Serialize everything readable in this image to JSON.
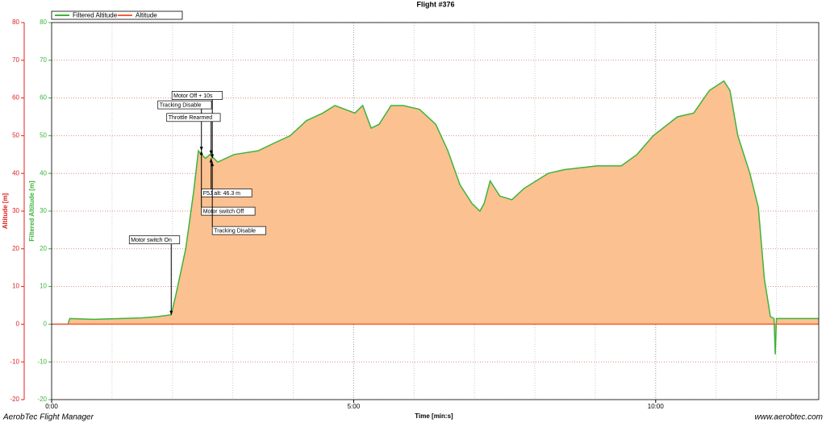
{
  "chart_data": {
    "type": "area",
    "title": "Flight #376",
    "x_label": "Time [min:s]",
    "y_label": "Filtered Altitude [m]",
    "y2_label": "Altitude [m]",
    "footer_left": "AerobTec Flight Manager",
    "footer_right": "www.aerobtec.com",
    "xlim": [
      0,
      12.7
    ],
    "xticks": [
      {
        "value": 0,
        "label": "0:00"
      },
      {
        "value": 5,
        "label": "5:00"
      },
      {
        "value": 10,
        "label": "10:00"
      }
    ],
    "xminor_ticks": [
      1,
      2,
      3,
      4,
      6,
      7,
      8,
      9,
      11,
      12
    ],
    "ylim": [
      -20,
      80
    ],
    "yticks": [
      -20,
      -10,
      0,
      10,
      20,
      30,
      40,
      50,
      60,
      70,
      80
    ],
    "y2lim": [
      -20,
      80
    ],
    "y2ticks": [
      -20,
      -10,
      0,
      10,
      20,
      30,
      40,
      50,
      60,
      70,
      80
    ],
    "grid": true,
    "legend": "top-left",
    "fill_color": "#fcc190",
    "series": [
      {
        "name": "Filtered Altitude",
        "color": "#3cb43c",
        "x": [
          0,
          0.2,
          0.27,
          0.3,
          0.7,
          1.15,
          1.5,
          1.75,
          1.98,
          2.06,
          2.22,
          2.35,
          2.43,
          2.48,
          2.55,
          2.62,
          2.75,
          3.02,
          3.42,
          3.68,
          3.95,
          4.22,
          4.49,
          4.69,
          5.02,
          5.15,
          5.29,
          5.42,
          5.62,
          5.82,
          6.09,
          6.36,
          6.56,
          6.76,
          6.96,
          7.09,
          7.16,
          7.26,
          7.42,
          7.62,
          7.82,
          8.22,
          8.49,
          9.03,
          9.43,
          9.69,
          9.96,
          10.36,
          10.63,
          10.89,
          11.13,
          11.23,
          11.36,
          11.56,
          11.7,
          11.8,
          11.9,
          11.96,
          11.98,
          12.0,
          12.03,
          12.7
        ],
        "values": [
          0,
          0,
          0,
          1.5,
          1.3,
          1.5,
          1.7,
          2,
          2.5,
          8,
          20,
          35,
          46,
          45,
          44,
          45,
          43,
          45,
          46,
          48,
          50,
          54,
          56,
          58,
          56,
          58,
          52,
          53,
          58,
          58,
          57,
          53,
          46,
          37,
          32,
          30,
          32,
          38,
          34,
          33,
          36,
          40,
          41,
          42,
          42,
          45,
          50,
          55,
          56,
          62,
          64.5,
          62,
          50,
          40,
          31,
          12,
          2,
          1.5,
          -8,
          1.5,
          1.5,
          1.5
        ]
      },
      {
        "name": "Altitude",
        "color": "#f2603c",
        "axis": "y2",
        "x": [
          0,
          12.7
        ],
        "values": [
          0,
          0
        ]
      }
    ],
    "annotations": [
      {
        "text": "Motor switch On",
        "x": 1.98,
        "y": 2.5
      },
      {
        "text": "Motor Off + 10s",
        "x": 2.66,
        "y": 44
      },
      {
        "text": "Tracking Disable",
        "x": 2.48,
        "y": 46
      },
      {
        "text": "Throttle Rearmed",
        "x": 2.64,
        "y": 45
      },
      {
        "text": "F5J alt: 46.3 m",
        "x": 2.64,
        "y": 44
      },
      {
        "text": "Motor switch Off",
        "x": 2.48,
        "y": 46
      },
      {
        "text": "Tracking Disable",
        "x": 2.66,
        "y": 43
      }
    ]
  }
}
